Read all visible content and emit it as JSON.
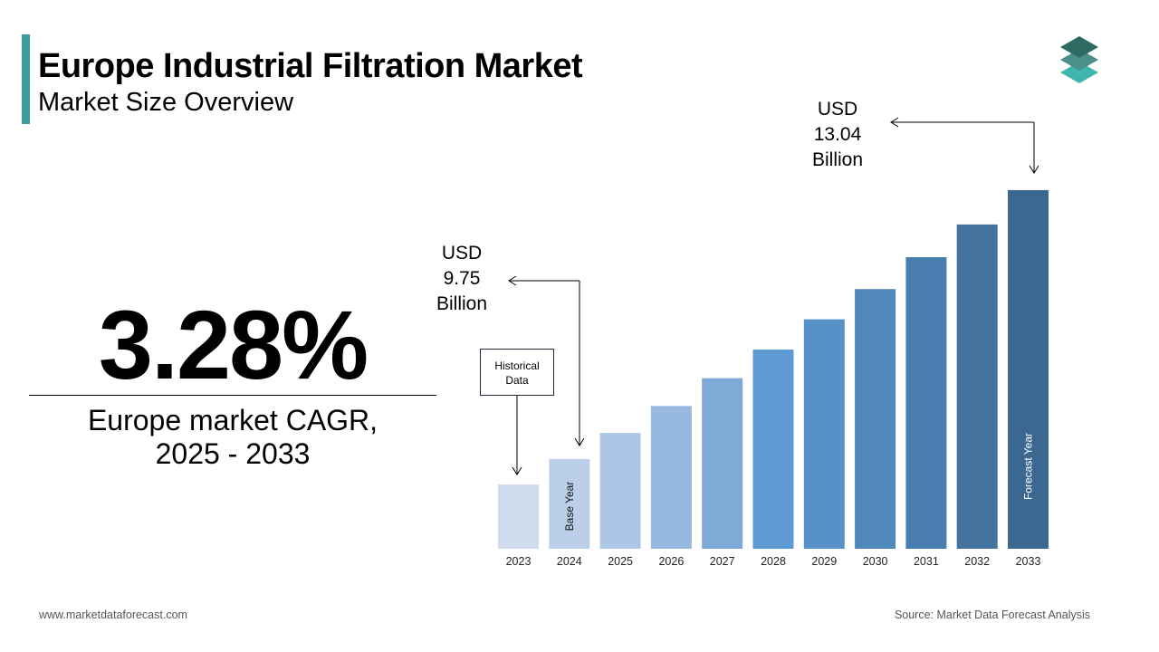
{
  "header": {
    "title": "Europe Industrial Filtration Market",
    "subtitle": "Market Size Overview",
    "accent_color": "#3a9c9c"
  },
  "highlight": {
    "cagr_value": "3.28%",
    "cagr_label_line1": "Europe market CAGR,",
    "cagr_label_line2": "2025 - 2033"
  },
  "chart_data": {
    "type": "bar",
    "categories": [
      "2023",
      "2024",
      "2025",
      "2026",
      "2027",
      "2028",
      "2029",
      "2030",
      "2031",
      "2032",
      "2033"
    ],
    "values": [
      9.44,
      9.75,
      10.07,
      10.4,
      10.74,
      11.09,
      11.46,
      11.83,
      12.22,
      12.62,
      13.04
    ],
    "colors": [
      "#d0dcee",
      "#bccfe8",
      "#adc6e5",
      "#97b9df",
      "#7faad8",
      "#5d9ad3",
      "#5890c8",
      "#5088bc",
      "#4a7eb0",
      "#4573a0",
      "#3c6790"
    ],
    "unit": "USD Billion",
    "annotations": {
      "start": {
        "year": "2024",
        "line1": "USD",
        "line2": "9.75",
        "line3": "Billion"
      },
      "end": {
        "year": "2033",
        "line1": "USD",
        "line2": "13.04",
        "line3": "Billion"
      },
      "historical_label_line1": "Historical",
      "historical_label_line2": "Data",
      "base_year_label": "Base Year",
      "forecast_year_label": "Forecast Year"
    },
    "xlabel": "",
    "ylabel": "",
    "grid": false
  },
  "footer": {
    "website": "www.marketdataforecast.com",
    "source": "Source: Market Data Forecast Analysis"
  },
  "logo": {
    "colors": [
      "#2e6b63",
      "#4a8f8a",
      "#3fb5b0"
    ]
  }
}
